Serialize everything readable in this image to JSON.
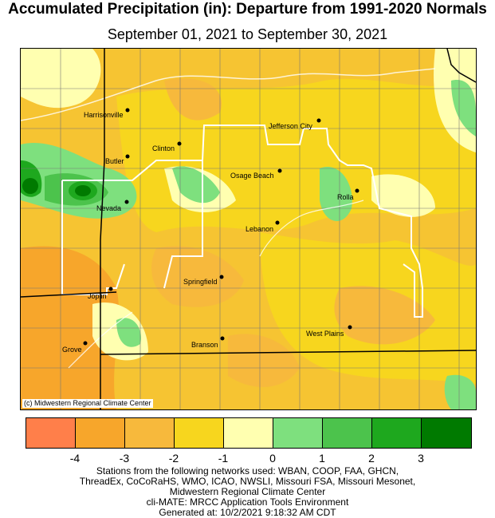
{
  "title": "Accumulated Precipitation (in): Departure from 1991-2020 Normals",
  "subtitle": "September 01, 2021 to September 30, 2021",
  "credit": "(c) Midwestern Regional Climate Center",
  "cities": [
    {
      "name": "Harrisonville"
    },
    {
      "name": "Clinton"
    },
    {
      "name": "Jefferson City"
    },
    {
      "name": "Butler"
    },
    {
      "name": "Osage Beach"
    },
    {
      "name": "Rolla"
    },
    {
      "name": "Nevada"
    },
    {
      "name": "Lebanon"
    },
    {
      "name": "Springfield"
    },
    {
      "name": "Joplin"
    },
    {
      "name": "West Plains"
    },
    {
      "name": "Branson"
    },
    {
      "name": "Grove"
    }
  ],
  "legend": {
    "colors": [
      "#ff7f4a",
      "#f7a62b",
      "#f7b93c",
      "#f7d61e",
      "#ffffb0",
      "#7ee07e",
      "#4cc34c",
      "#1ea81e",
      "#007a00"
    ],
    "ticks": [
      "-4",
      "-3",
      "-2",
      "-1",
      "0",
      "1",
      "2",
      "3"
    ]
  },
  "footer": [
    "Stations from the following networks used: WBAN, COOP, FAA, GHCN,",
    "ThreadEx, CoCoRaHS, WMO, ICAO, NWSLI, Missouri FSA, Missouri Mesonet,",
    "Midwestern Regional Climate Center",
    "cli-MATE: MRCC Application Tools Environment",
    "Generated at: 10/2/2021 9:18:32 AM CDT"
  ]
}
